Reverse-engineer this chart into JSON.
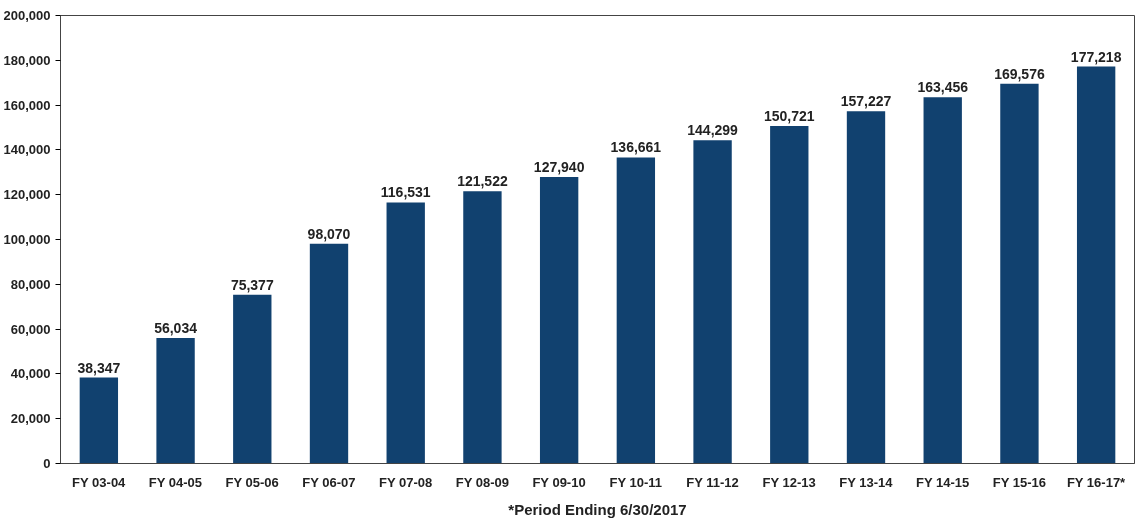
{
  "chart_data": {
    "type": "bar",
    "categories": [
      "FY 03-04",
      "FY 04-05",
      "FY 05-06",
      "FY 06-07",
      "FY 07-08",
      "FY 08-09",
      "FY 09-10",
      "FY 10-11",
      "FY 11-12",
      "FY 12-13",
      "FY 13-14",
      "FY 14-15",
      "FY 15-16",
      "FY 16-17*"
    ],
    "values": [
      38347,
      56034,
      75377,
      98070,
      116531,
      121522,
      127940,
      136661,
      144299,
      150721,
      157227,
      163456,
      169576,
      177218
    ],
    "color": "#11416f",
    "ylim": [
      0,
      200000
    ],
    "yticks": [
      {
        "value": 0,
        "label": "0"
      },
      {
        "value": 20000,
        "label": "20,000"
      },
      {
        "value": 40000,
        "label": "40,000"
      },
      {
        "value": 60000,
        "label": "60,000"
      },
      {
        "value": 80000,
        "label": "80,000"
      },
      {
        "value": 100000,
        "label": "100,000"
      },
      {
        "value": 120000,
        "label": "120,000"
      },
      {
        "value": 140000,
        "label": "140,000"
      },
      {
        "value": 160000,
        "label": "160,000"
      },
      {
        "value": 180000,
        "label": "180,000"
      },
      {
        "value": 200000,
        "label": "200,000"
      }
    ],
    "value_labels": [
      "38,347",
      "56,034",
      "75,377",
      "98,070",
      "116,531",
      "121,522",
      "127,940",
      "136,661",
      "144,299",
      "150,721",
      "157,227",
      "163,456",
      "169,576",
      "177,218"
    ],
    "grid": false,
    "annotations": [
      "*Period Ending 6/30/2017"
    ]
  }
}
